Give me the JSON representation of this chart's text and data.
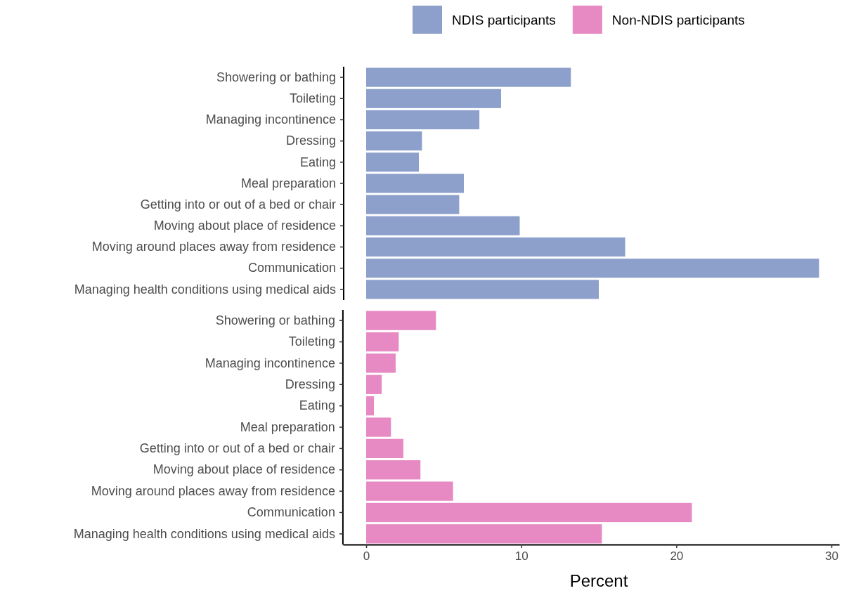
{
  "chart_data": [
    {
      "type": "bar",
      "orientation": "horizontal",
      "categories": [
        "Showering or bathing",
        "Toileting",
        "Managing incontinence",
        "Dressing",
        "Eating",
        "Meal preparation",
        "Getting into or out of a bed or chair",
        "Moving about place of residence",
        "Moving around places away from residence",
        "Communication",
        "Managing health conditions using medical aids"
      ],
      "series": [
        {
          "name": "NDIS participants",
          "color": "#8da0cb",
          "values": [
            13.2,
            8.7,
            7.3,
            3.6,
            3.4,
            6.3,
            6.0,
            9.9,
            16.7,
            29.2,
            15.0
          ]
        }
      ],
      "xlim": [
        0,
        30
      ],
      "xticks": [
        0,
        10,
        20,
        30
      ],
      "tick_labels": "y",
      "legend": "top"
    },
    {
      "type": "bar",
      "orientation": "horizontal",
      "categories": [
        "Showering or bathing",
        "Toileting",
        "Managing incontinence",
        "Dressing",
        "Eating",
        "Meal preparation",
        "Getting into or out of a bed or chair",
        "Moving about place of residence",
        "Moving around places away from residence",
        "Communication",
        "Managing health conditions using medical aids"
      ],
      "series": [
        {
          "name": "Non-NDIS participants",
          "color": "#e78ac3",
          "values": [
            4.5,
            2.1,
            1.9,
            1.0,
            0.5,
            1.6,
            2.4,
            3.5,
            5.6,
            21.0,
            15.2
          ]
        }
      ],
      "xlim": [
        -1.5,
        30.5
      ],
      "xticks": [
        0,
        10,
        20,
        30
      ],
      "xlabel": "Percent",
      "legend": "top"
    }
  ]
}
